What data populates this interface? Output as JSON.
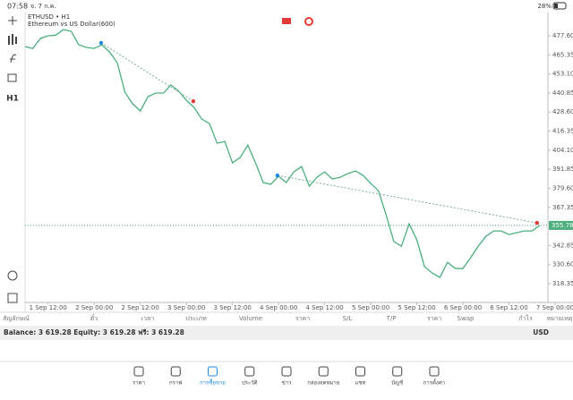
{
  "status_bar": {
    "time": "07:58",
    "date": "จ. 7 ก.ค.",
    "battery": "28%"
  },
  "toolbar": {
    "timeframe": "H1"
  },
  "chart_data": {
    "type": "line",
    "title": "ETHUSD • H1",
    "subtitle": "Ethereum vs US Dollar(600)",
    "color": "#4caf7d",
    "x": [
      0,
      2,
      4,
      6,
      8,
      10,
      12,
      14,
      16,
      18,
      20,
      22,
      24,
      26,
      28,
      30,
      32,
      34,
      36,
      38,
      40,
      42,
      44,
      46,
      48,
      50,
      52,
      54,
      56,
      58,
      60,
      62,
      64,
      66,
      68,
      70,
      72,
      74,
      76,
      78,
      80,
      82,
      84,
      86,
      88,
      90,
      92,
      94,
      96,
      98,
      100,
      102,
      104,
      106,
      108,
      110,
      112,
      114,
      116,
      118,
      120,
      122,
      124,
      126,
      128,
      130,
      132,
      134
    ],
    "values": [
      470.7,
      469.5,
      475.9,
      477.6,
      478,
      481.6,
      480.5,
      471.8,
      470.1,
      469.5,
      471.8,
      467.2,
      460.3,
      441.4,
      433.9,
      429.3,
      438.5,
      440.8,
      440.8,
      446,
      442,
      436.2,
      431.6,
      424.1,
      421.2,
      408.6,
      409.7,
      396,
      399.4,
      407.4,
      396,
      383.3,
      382.2,
      387.4,
      383.3,
      390.2,
      393.6,
      381,
      386.7,
      390.2,
      385.6,
      386.7,
      389,
      390.8,
      387.9,
      382.7,
      378.1,
      362.6,
      345.4,
      342.5,
      356.8,
      346.5,
      329.3,
      325.2,
      322.4,
      332.1,
      328.1,
      328.1,
      335,
      342.5,
      348.8,
      352.2,
      352.2,
      349.9,
      351.1,
      352.2,
      352.2,
      355.78
    ],
    "trendlines": [
      {
        "x": [
          19.8,
          43.8
        ],
        "values": [
          473,
          435.6
        ]
      },
      {
        "x": [
          65.7,
          133.3
        ],
        "values": [
          387.9,
          357.4
        ]
      }
    ],
    "xlim": [
      0,
      138
    ],
    "ylim": [
      306.28,
      492.55
    ],
    "xticks": [
      {
        "value": 6,
        "label": "1 Sep 12:00"
      },
      {
        "value": 18,
        "label": "2 Sep 00:00"
      },
      {
        "value": 30,
        "label": "2 Sep 12:00"
      },
      {
        "value": 42,
        "label": "3 Sep 00:00"
      },
      {
        "value": 54,
        "label": "3 Sep 12:00"
      },
      {
        "value": 66,
        "label": "4 Sep 00:00"
      },
      {
        "value": 78,
        "label": "4 Sep 12:00"
      },
      {
        "value": 90,
        "label": "5 Sep 00:00"
      },
      {
        "value": 102,
        "label": "5 Sep 12:00"
      },
      {
        "value": 114,
        "label": "6 Sep 00:00"
      },
      {
        "value": 126,
        "label": "6 Sep 12:00"
      },
      {
        "value": 138,
        "label": "7 Sep 00:00"
      }
    ],
    "yticks": [
      {
        "value": 477.6,
        "label": "477.60"
      },
      465.35,
      {
        "value": 453.1,
        "label": "453.10"
      },
      440.85,
      {
        "value": 428.6,
        "label": "428.60"
      },
      416.35,
      {
        "value": 404.1,
        "label": "404.10"
      },
      391.85,
      {
        "value": 379.6,
        "label": "379.60"
      },
      367.35,
      342.85,
      {
        "value": 330.6,
        "label": "330.60"
      },
      318.35
    ]
  },
  "table_header": [
    "สัญลักษณ์",
    "ตั๋ว",
    "เวลา",
    "ประเภท",
    "Volume",
    "ราคา",
    "S/L",
    "T/P",
    "ราคา",
    "Swap",
    "กำไร",
    "หมายเหตุ"
  ],
  "balance": {
    "text": "Balance: 3 619.28 Equity: 3 619.28 ฟรี: 3 619.28",
    "currency": "USD"
  },
  "nav": [
    "ราคา",
    "กราฟ",
    "การซื้อขาย",
    "ประวัติ",
    "ข่าว",
    "กล่องจดหมาย",
    "แชท",
    "บัญชี",
    "การตั้งค่า"
  ]
}
